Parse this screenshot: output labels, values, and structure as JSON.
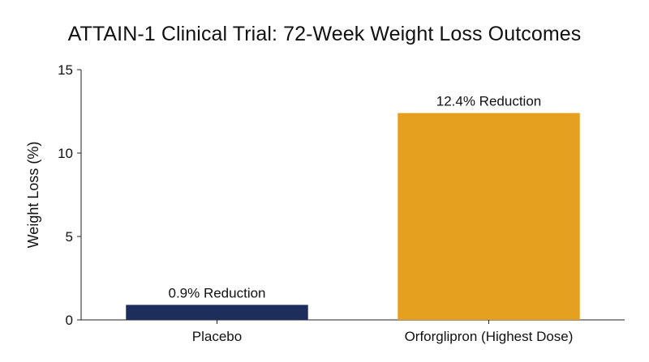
{
  "chart_data": {
    "type": "bar",
    "title": "ATTAIN-1 Clinical Trial: 72-Week Weight Loss Outcomes",
    "xlabel": "",
    "ylabel": "Weight Loss (%)",
    "ylim": [
      0,
      15
    ],
    "yticks": [
      0,
      5,
      10,
      15
    ],
    "grid": false,
    "categories": [
      "Placebo",
      "Orforglipron (Highest Dose)"
    ],
    "values": [
      0.9,
      12.4
    ],
    "data_labels": [
      "0.9% Reduction",
      "12.4% Reduction"
    ],
    "colors": [
      "#1d2d5c",
      "#e6a020"
    ]
  }
}
